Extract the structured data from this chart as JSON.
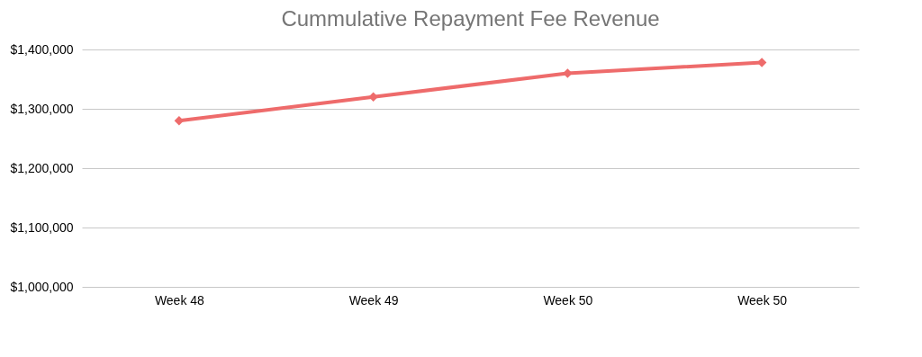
{
  "chart_data": {
    "type": "line",
    "title": "Cummulative Repayment Fee Revenue",
    "categories": [
      "Week 48",
      "Week 49",
      "Week 50",
      "Week 50"
    ],
    "series": [
      {
        "color": "#ee6b6b",
        "values": [
          1280000,
          1320000,
          1360000,
          1378000
        ]
      }
    ],
    "ylim": [
      1000000,
      1400000
    ],
    "yticks": [
      {
        "value": 1000000,
        "label": "$1,000,000"
      },
      {
        "value": 1100000,
        "label": "$1,100,000"
      },
      {
        "value": 1200000,
        "label": "$1,200,000"
      },
      {
        "value": 1300000,
        "label": "$1,300,000"
      },
      {
        "value": 1400000,
        "label": "$1,400,000"
      }
    ],
    "grid": "y",
    "marker": "diamond",
    "line_style": "solid",
    "legend": false
  }
}
